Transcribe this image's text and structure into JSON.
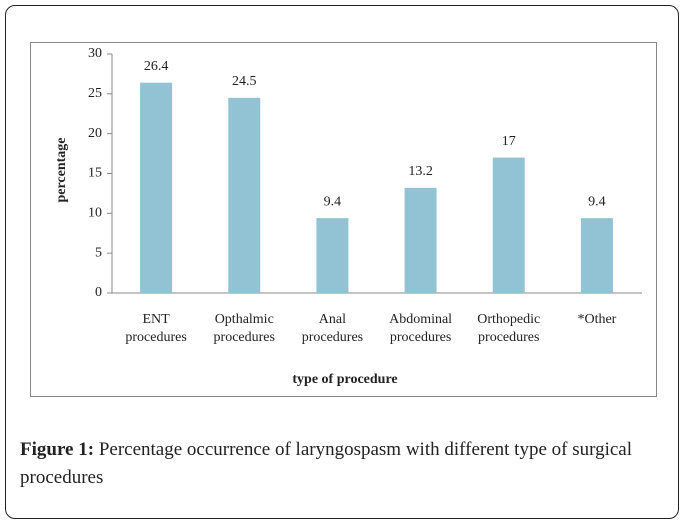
{
  "chart_data": {
    "type": "bar",
    "categories": [
      "ENT procedures",
      "Opthalmic procedures",
      "Anal procedures",
      "Abdominal procedures",
      "Orthopedic procedures",
      "*Other"
    ],
    "values": [
      26.4,
      24.5,
      9.4,
      13.2,
      17,
      9.4
    ],
    "color": "#92c3d5",
    "ylim": [
      0,
      30
    ],
    "yticks": [
      0,
      5,
      10,
      15,
      20,
      25,
      30
    ],
    "y_label": "percentage",
    "x_label": "type of procedure"
  },
  "caption": {
    "label": "Figure 1:",
    "text": "Percentage occurrence of laryngospasm with different type of surgical procedures"
  }
}
